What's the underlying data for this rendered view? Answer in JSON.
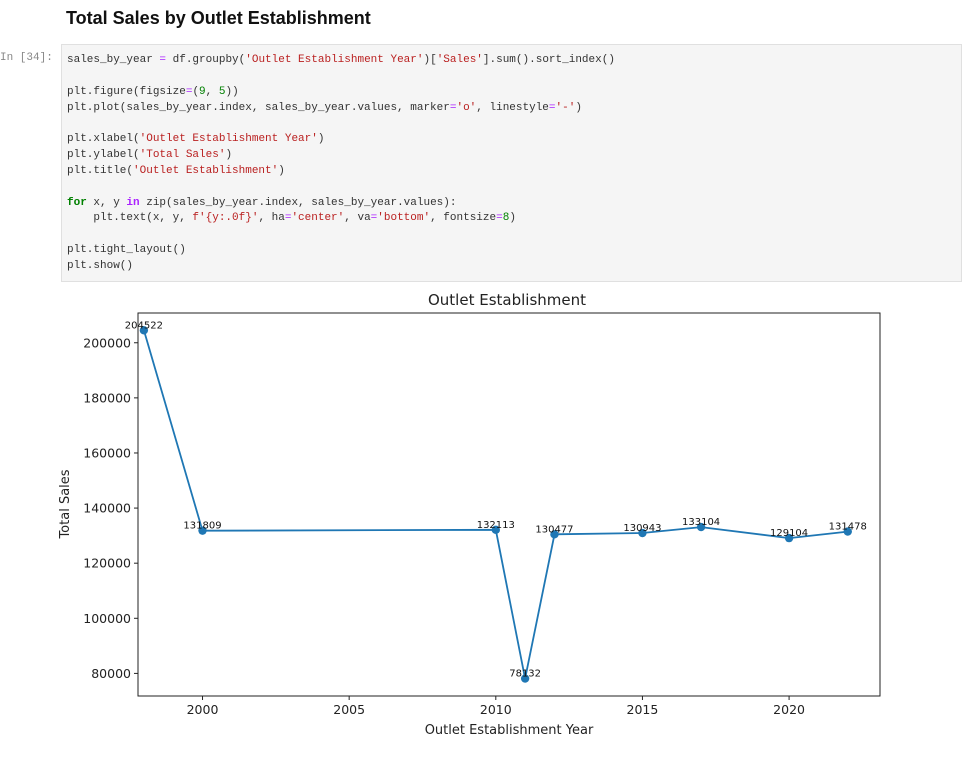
{
  "notebook": {
    "heading": "Total Sales by Outlet Establishment",
    "cell_prompt": "In [34]:",
    "code_lines": [
      [
        [
          "t",
          "sales_by_year "
        ],
        [
          "op",
          "="
        ],
        [
          "t",
          " df.groupby("
        ],
        [
          "str",
          "'Outlet Establishment Year'"
        ],
        [
          "t",
          ")["
        ],
        [
          "str",
          "'Sales'"
        ],
        [
          "t",
          "].sum().sort_index()"
        ]
      ],
      [],
      [
        [
          "t",
          "plt.figure(figsize"
        ],
        [
          "op",
          "="
        ],
        [
          "t",
          "("
        ],
        [
          "num",
          "9"
        ],
        [
          "t",
          ", "
        ],
        [
          "num",
          "5"
        ],
        [
          "t",
          "))"
        ]
      ],
      [
        [
          "t",
          "plt.plot(sales_by_year.index, sales_by_year.values, marker"
        ],
        [
          "op",
          "="
        ],
        [
          "str",
          "'o'"
        ],
        [
          "t",
          ", linestyle"
        ],
        [
          "op",
          "="
        ],
        [
          "str",
          "'-'"
        ],
        [
          "t",
          ")"
        ]
      ],
      [],
      [
        [
          "t",
          "plt.xlabel("
        ],
        [
          "str",
          "'Outlet Establishment Year'"
        ],
        [
          "t",
          ")"
        ]
      ],
      [
        [
          "t",
          "plt.ylabel("
        ],
        [
          "str",
          "'Total Sales'"
        ],
        [
          "t",
          ")"
        ]
      ],
      [
        [
          "t",
          "plt.title("
        ],
        [
          "str",
          "'Outlet Establishment'"
        ],
        [
          "t",
          ")"
        ]
      ],
      [],
      [
        [
          "kw",
          "for"
        ],
        [
          "t",
          " x, y "
        ],
        [
          "kwop",
          "in"
        ],
        [
          "t",
          " zip(sales_by_year.index, sales_by_year.values):"
        ]
      ],
      [
        [
          "t",
          "    plt.text(x, y, "
        ],
        [
          "str",
          "f'{y:.0f}'"
        ],
        [
          "t",
          ", ha"
        ],
        [
          "op",
          "="
        ],
        [
          "str",
          "'center'"
        ],
        [
          "t",
          ", va"
        ],
        [
          "op",
          "="
        ],
        [
          "str",
          "'bottom'"
        ],
        [
          "t",
          ", fontsize"
        ],
        [
          "op",
          "="
        ],
        [
          "num",
          "8"
        ],
        [
          "t",
          ")"
        ]
      ],
      [],
      [
        [
          "t",
          "plt.tight_layout()"
        ]
      ],
      [
        [
          "t",
          "plt.show()"
        ]
      ]
    ]
  },
  "chart_data": {
    "type": "line",
    "title": "Outlet Establishment",
    "xlabel": "Outlet Establishment Year",
    "ylabel": "Total Sales",
    "x": [
      1998,
      2000,
      2010,
      2011,
      2012,
      2015,
      2017,
      2020,
      2022
    ],
    "values": [
      204522,
      131809,
      132113,
      78132,
      130477,
      130943,
      133104,
      129104,
      131478
    ],
    "data_labels": [
      "204522",
      "131809",
      "132113",
      "78132",
      "130477",
      "130943",
      "133104",
      "129104",
      "131478"
    ],
    "xlim": [
      1997.8,
      2023.1
    ],
    "ylim": [
      71800,
      210800
    ],
    "xticks": [
      2000,
      2005,
      2010,
      2015,
      2020
    ],
    "xtick_labels": [
      "2000",
      "2005",
      "2010",
      "2015",
      "2020"
    ],
    "yticks": [
      80000,
      100000,
      120000,
      140000,
      160000,
      180000,
      200000
    ],
    "ytick_labels": [
      "80000",
      "100000",
      "120000",
      "140000",
      "160000",
      "180000",
      "200000"
    ],
    "line_color": "#1f77b4",
    "marker": "o",
    "grid": false,
    "legend": "none"
  }
}
